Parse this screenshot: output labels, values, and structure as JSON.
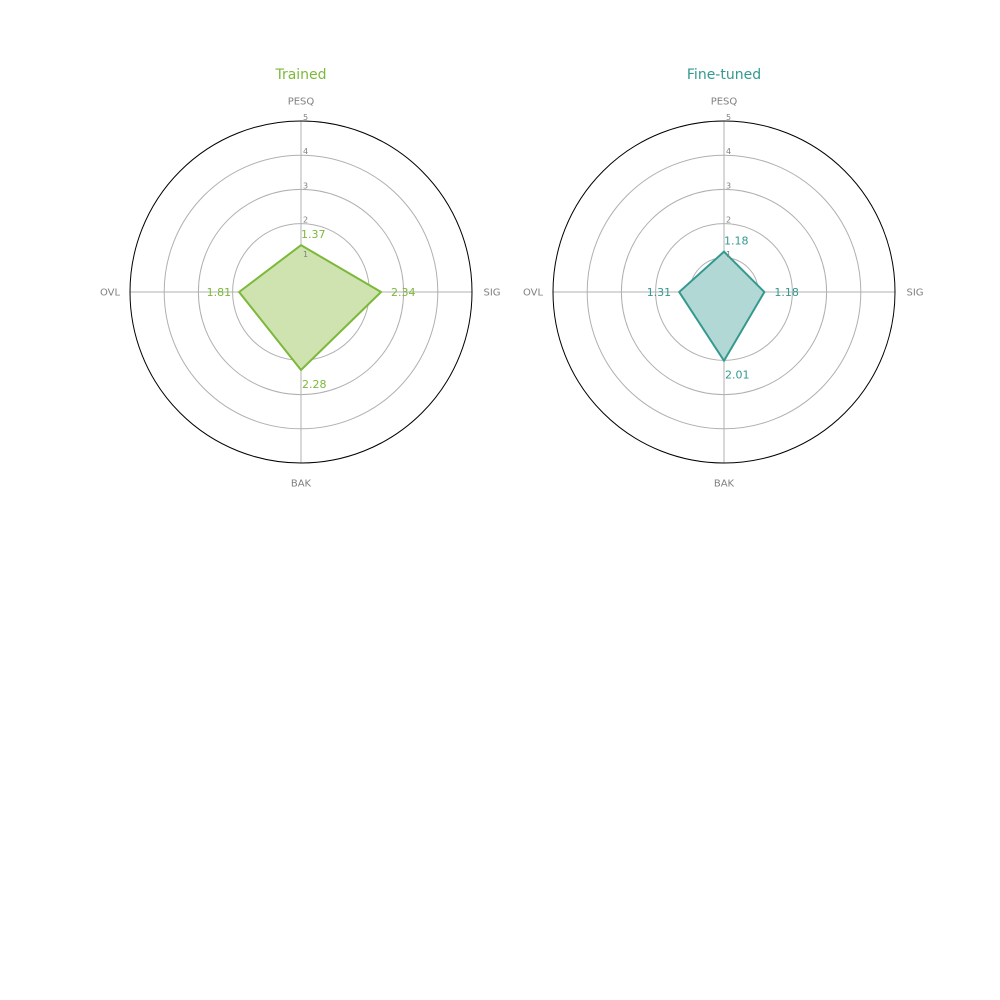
{
  "chart_data": [
    {
      "type": "radar",
      "title": "Trained",
      "color": "#7cb83a",
      "fill_color": "#cfe3b0",
      "axes": [
        "PESQ",
        "SIG",
        "BAK",
        "OVL"
      ],
      "values": [
        1.37,
        2.34,
        2.28,
        1.81
      ],
      "value_labels": [
        "1.37",
        "2.34",
        "2.28",
        "1.81"
      ],
      "rlim": [
        0,
        5
      ],
      "rticks": [
        "1",
        "2",
        "3",
        "4",
        "5"
      ]
    },
    {
      "type": "radar",
      "title": "Fine-tuned",
      "color": "#33998f",
      "fill_color": "#b2d8d5",
      "axes": [
        "PESQ",
        "SIG",
        "BAK",
        "OVL"
      ],
      "values": [
        1.18,
        1.18,
        2.01,
        1.31
      ],
      "value_labels": [
        "1.18",
        "1.18",
        "2.01",
        "1.31"
      ],
      "rlim": [
        0,
        5
      ],
      "rticks": [
        "1",
        "2",
        "3",
        "4",
        "5"
      ]
    }
  ],
  "colors": {
    "grid": "#b0b0b0",
    "outer_ring": "#000000",
    "axis_text": "#808080"
  }
}
